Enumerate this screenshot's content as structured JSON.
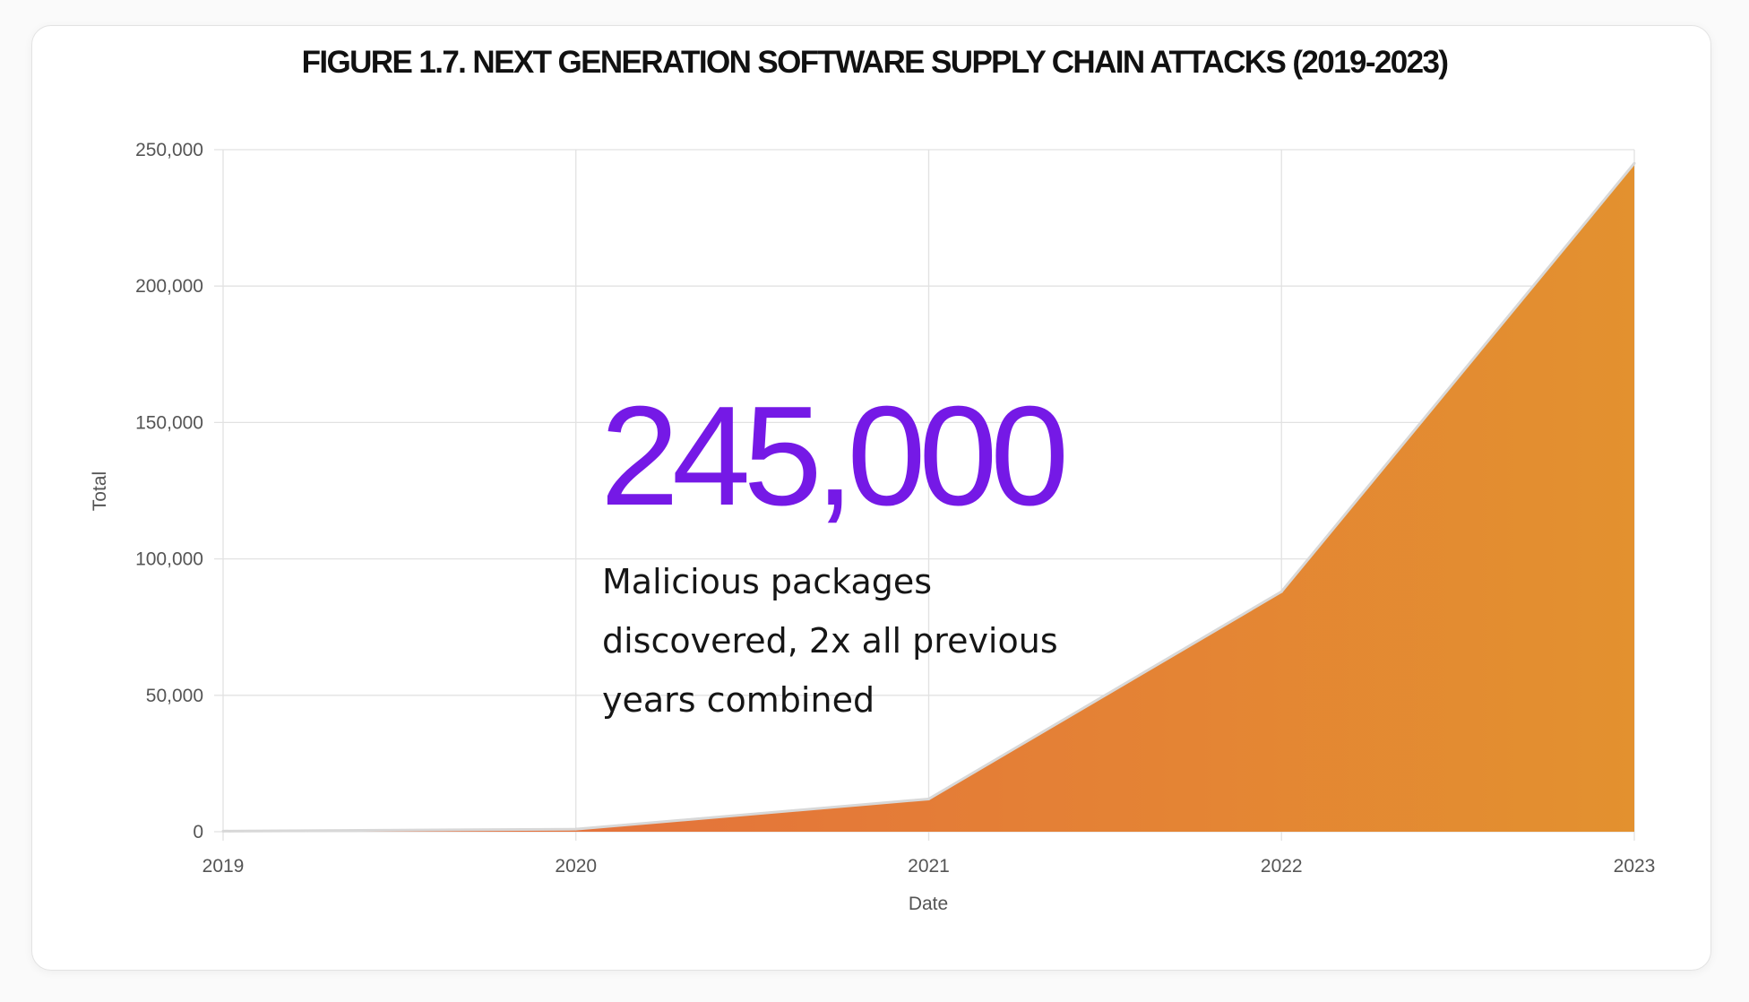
{
  "chart_data": {
    "type": "area",
    "title": "FIGURE 1.7. NEXT GENERATION SOFTWARE SUPPLY CHAIN ATTACKS (2019-2023)",
    "xlabel": "Date",
    "ylabel": "Total",
    "x": [
      "2019",
      "2020",
      "2021",
      "2022",
      "2023"
    ],
    "series": [
      {
        "values": [
          216,
          929,
          12000,
          88000,
          245000
        ]
      }
    ],
    "ylim": [
      0,
      250000
    ],
    "yticks": [
      "0",
      "50,000",
      "100,000",
      "150,000",
      "200,000",
      "250,000"
    ],
    "xticks": [
      "2019",
      "2020",
      "2021",
      "2022",
      "2023"
    ],
    "grid": true,
    "legend": "none",
    "fill_gradient": [
      "#e5683f",
      "#e3912f"
    ],
    "annotation": {
      "headline": "245,000",
      "text_lines": [
        "Malicious packages",
        "discovered, 2x all previous",
        "years combined"
      ],
      "headline_color": "#7519e6"
    }
  }
}
